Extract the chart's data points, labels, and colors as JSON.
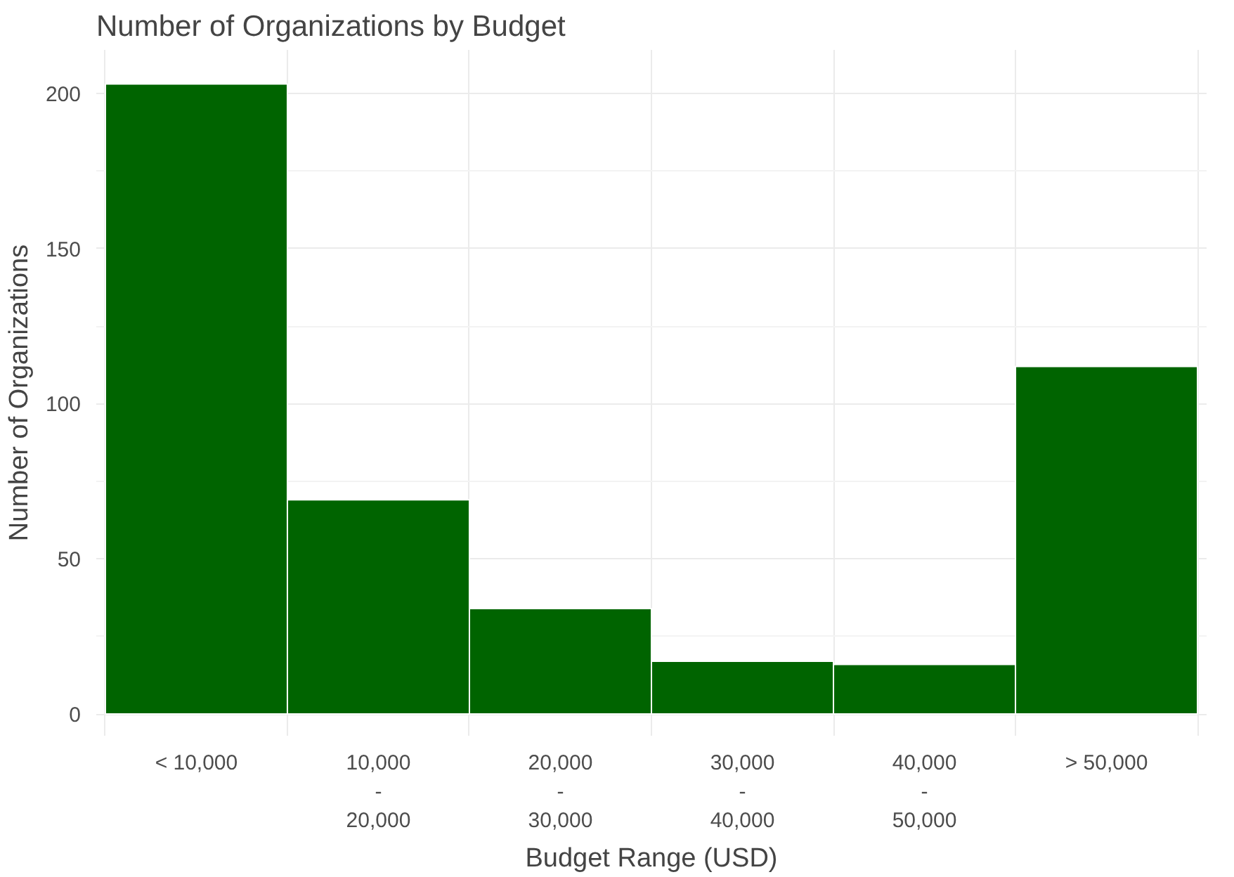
{
  "chart_data": {
    "type": "bar",
    "title": "Number of Organizations by Budget",
    "xlabel": "Budget Range (USD)",
    "ylabel": "Number of Organizations",
    "categories": [
      "< 10,000",
      "10,000\n-\n20,000",
      "20,000\n-\n30,000",
      "30,000\n-\n40,000",
      "40,000\n-\n50,000",
      "> 50,000"
    ],
    "values": [
      203,
      69,
      34,
      17,
      16,
      112
    ],
    "color": "#006400",
    "ylim": [
      -7,
      214
    ],
    "yticks": [
      0,
      50,
      100,
      150,
      200
    ],
    "grid": true
  }
}
